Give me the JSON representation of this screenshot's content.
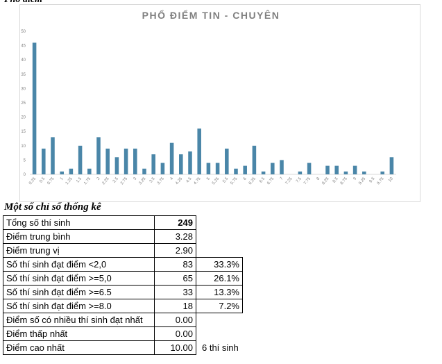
{
  "top_heading": "Phổ điểm",
  "stats_heading": "Một số chỉ số thống kê",
  "stats": [
    {
      "label": "Tổng số thí sinh",
      "value": "249",
      "pct": "",
      "note": ""
    },
    {
      "label": "Điểm trung bình",
      "value": "3.28",
      "pct": "",
      "note": ""
    },
    {
      "label": "Điểm trung vị",
      "value": "2.90",
      "pct": "",
      "note": ""
    },
    {
      "label": "Số thí sinh đạt điểm <2,0",
      "value": "83",
      "pct": "33.3%",
      "note": ""
    },
    {
      "label": "Số thí sinh đạt điểm >=5,0",
      "value": "65",
      "pct": "26.1%",
      "note": ""
    },
    {
      "label": "Số thí sinh đạt điểm >=6.5",
      "value": "33",
      "pct": "13.3%",
      "note": ""
    },
    {
      "label": "Số thí sinh đạt điểm >=8.0",
      "value": "18",
      "pct": "7.2%",
      "note": ""
    },
    {
      "label": "Điểm số có nhiều thí sinh đạt nhất",
      "value": "0.00",
      "pct": "",
      "note": ""
    },
    {
      "label": "Điểm thấp nhất",
      "value": "0.00",
      "pct": "",
      "note": ""
    },
    {
      "label": "Điểm cao nhất",
      "value": "10.00",
      "pct": "",
      "note": "6 thí sinh"
    }
  ],
  "chart_data": {
    "type": "bar",
    "title": "PHỔ ĐIỂM TIN - CHUYÊN",
    "xlabel": "",
    "ylabel": "",
    "ylim": [
      0,
      50
    ],
    "yticks": [
      0,
      5,
      10,
      15,
      20,
      25,
      30,
      35,
      40,
      45,
      50
    ],
    "grid": false,
    "legend": "none",
    "bar_color": "#4a86a8",
    "categories": [
      "0.25",
      "0.5",
      "0.75",
      "1",
      "1.25",
      "1.5",
      "1.75",
      "2",
      "2.25",
      "2.5",
      "2.75",
      "3",
      "3.25",
      "3.5",
      "3.75",
      "4",
      "4.25",
      "4.5",
      "4.75",
      "5",
      "5.25",
      "5.5",
      "5.75",
      "6",
      "6.25",
      "6.5",
      "6.75",
      "7",
      "7.25",
      "7.5",
      "7.75",
      "8",
      "8.25",
      "8.5",
      "8.75",
      "9",
      "9.25",
      "9.5",
      "9.75",
      "10"
    ],
    "values": [
      46,
      9,
      13,
      1,
      2,
      10,
      2,
      13,
      9,
      6,
      9,
      9,
      2,
      7,
      4,
      11,
      7,
      8,
      16,
      4,
      4,
      9,
      2,
      3,
      10,
      1,
      4,
      5,
      0,
      1,
      4,
      0,
      3,
      3,
      1,
      3,
      1,
      0,
      1,
      6
    ]
  }
}
